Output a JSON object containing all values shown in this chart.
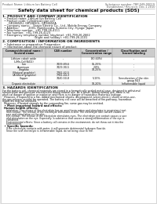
{
  "bg_color": "#e8e8e8",
  "page_bg": "#ffffff",
  "title": "Safety data sheet for chemical products (SDS)",
  "header_left": "Product Name: Lithium Ion Battery Cell",
  "header_right_line1": "Substance number: TBP-049-00019",
  "header_right_line2": "Established / Revision: Dec.1.2010",
  "section1_title": "1. PRODUCT AND COMPANY IDENTIFICATION",
  "section1_lines": [
    "  • Product name: Lithium Ion Battery Cell",
    "  • Product code: Cylindrical-type cell",
    "       GR18650U, GR18650L, GR18650A",
    "  • Company name:    Sanyo Electric Co., Ltd., Mobile Energy Company",
    "  • Address:           2001, Kamikosaka, Sumoto-City, Hyogo, Japan",
    "  • Telephone number:  +81-799-26-4111",
    "  • Fax number:  +81-799-26-4123",
    "  • Emergency telephone number (daytime): +81-799-26-2662",
    "                                    (Night and holiday): +81-799-26-2101"
  ],
  "section2_title": "2. COMPOSITION / INFORMATION ON INGREDIENTS",
  "section2_subtitle": "  • Substance or preparation: Preparation",
  "section2_subtitle2": "  • Information about the chemical nature of product:",
  "table_col_headers": [
    "Common/chemical name /",
    "CAS number",
    "Concentration /",
    "Classification and"
  ],
  "table_col_headers2": [
    "Several name",
    "",
    "Concentration range",
    "hazard labeling"
  ],
  "table_col_headers3": [
    "",
    "",
    "(30-60%)",
    ""
  ],
  "table_rows": [
    [
      "Lithium cobalt oxide",
      "-",
      "(30-60%)",
      "-"
    ],
    [
      "(LiMn-Co)(NiO2)",
      "",
      "",
      ""
    ],
    [
      "Iron",
      "7439-89-6",
      "15-25%",
      "-"
    ],
    [
      "Aluminum",
      "7429-90-5",
      "2-8%",
      "-"
    ],
    [
      "Graphite",
      "",
      "10-25%",
      "-"
    ],
    [
      "(Natural graphite)",
      "7782-42-5",
      "",
      ""
    ],
    [
      "(Artificial graphite)",
      "7782-44-3",
      "",
      ""
    ],
    [
      "Copper",
      "7440-50-8",
      "5-15%",
      "Sensitization of the skin"
    ],
    [
      "",
      "",
      "",
      "group R43"
    ],
    [
      "Organic electrolyte",
      "-",
      "10-20%",
      "Inflammable liquid"
    ]
  ],
  "section3_title": "3. HAZARDS IDENTIFICATION",
  "section3_lines": [
    "For the battery cell, chemical materials are stored in a hermetically sealed metal case, designed to withstand",
    "temperature and pressure encountered during normal use. As a result, during normal use, there is no",
    "physical danger of ignition or explosion and there is no danger of hazardous materials leakage.",
    "  However, if exposed to a fire, added mechanical shocks, decomposed, arisen electric shorts or miss-use,",
    "the gas release ventilat be operated. The battery cell case will be breached of fire-pathway, hazardous",
    "materials may be released.",
    "  Moreover, if heated strongly by the surrounding fire, some gas may be emitted."
  ],
  "section3_bullet1": "  • Most important hazard and effects:",
  "section3_human_title": "Human health effects:",
  "section3_human_lines": [
    "     Inhalation: The release of the electrolyte has an anesthesia action and stimulates in respiratory tract.",
    "     Skin contact: The release of the electrolyte stimulates a skin. The electrolyte skin contact causes a",
    "     sore and stimulation on the skin.",
    "     Eye contact: The release of the electrolyte stimulates eyes. The electrolyte eye contact causes a sore",
    "     and stimulation on the eye. Especially, a substance that causes a strong inflammation of the eye is",
    "     contained.",
    "     Environmental effects: Since a battery cell remains in the environment, do not throw out it into the",
    "     environment."
  ],
  "section3_bullet2": "  • Specific hazards:",
  "section3_specific_lines": [
    "     If the electrolyte contacts with water, it will generate detrimental hydrogen fluoride.",
    "     Since the seal electrolyte is inflammable liquid, do not bring close to fire."
  ],
  "text_color": "#111111",
  "gray_text": "#555555",
  "line_color": "#aaaaaa",
  "table_header_bg": "#cccccc",
  "table_alt_bg": "#eeeeee"
}
